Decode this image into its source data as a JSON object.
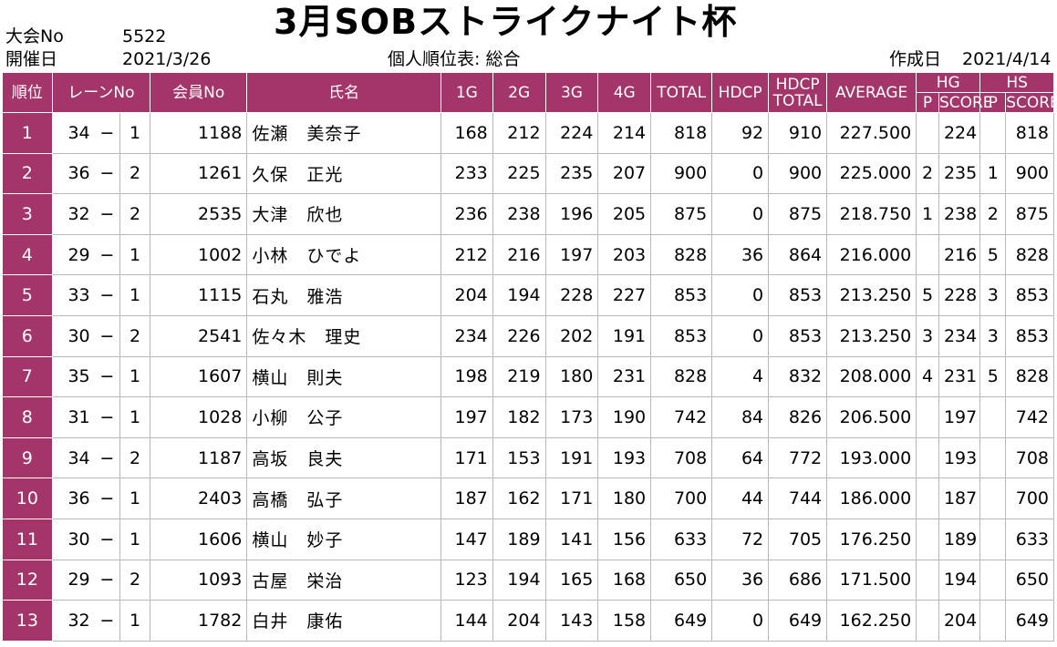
{
  "header": {
    "tournament_no_label": "大会No",
    "tournament_no_value": "5522",
    "date_label": "開催日",
    "date_value": "2021/3/26",
    "title": "3月SOBストライクナイト杯",
    "report_type": "個人順位表: 総合",
    "created_label": "作成日",
    "created_value": "2021/4/14"
  },
  "columns": {
    "rank": "順位",
    "lane": "レーンNo",
    "member": "会員No",
    "name": "氏名",
    "g1": "1G",
    "g2": "2G",
    "g3": "3G",
    "g4": "4G",
    "total": "TOTAL",
    "hdcp": "HDCP",
    "hdcp_total_1": "HDCP",
    "hdcp_total_2": "TOTAL",
    "average": "AVERAGE",
    "hg": "HG",
    "hs": "HS",
    "p": "P",
    "score": "SCORE"
  },
  "rows": [
    {
      "rank": "1",
      "lane": "34",
      "dash": "−",
      "pos": "1",
      "member": "1188",
      "name": "佐瀬　美奈子",
      "g1": "168",
      "g2": "212",
      "g3": "224",
      "g4": "214",
      "total": "818",
      "hdcp": "92",
      "hdcp_total": "910",
      "average": "227.500",
      "hg_p": "",
      "hg_score": "224",
      "hs_p": "",
      "hs_score": "818"
    },
    {
      "rank": "2",
      "lane": "36",
      "dash": "−",
      "pos": "2",
      "member": "1261",
      "name": "久保　正光",
      "g1": "233",
      "g2": "225",
      "g3": "235",
      "g4": "207",
      "total": "900",
      "hdcp": "0",
      "hdcp_total": "900",
      "average": "225.000",
      "hg_p": "2",
      "hg_score": "235",
      "hs_p": "1",
      "hs_score": "900"
    },
    {
      "rank": "3",
      "lane": "32",
      "dash": "−",
      "pos": "2",
      "member": "2535",
      "name": "大津　欣也",
      "g1": "236",
      "g2": "238",
      "g3": "196",
      "g4": "205",
      "total": "875",
      "hdcp": "0",
      "hdcp_total": "875",
      "average": "218.750",
      "hg_p": "1",
      "hg_score": "238",
      "hs_p": "2",
      "hs_score": "875"
    },
    {
      "rank": "4",
      "lane": "29",
      "dash": "−",
      "pos": "1",
      "member": "1002",
      "name": "小林　ひでよ",
      "g1": "212",
      "g2": "216",
      "g3": "197",
      "g4": "203",
      "total": "828",
      "hdcp": "36",
      "hdcp_total": "864",
      "average": "216.000",
      "hg_p": "",
      "hg_score": "216",
      "hs_p": "5",
      "hs_score": "828"
    },
    {
      "rank": "5",
      "lane": "33",
      "dash": "−",
      "pos": "1",
      "member": "1115",
      "name": "石丸　雅浩",
      "g1": "204",
      "g2": "194",
      "g3": "228",
      "g4": "227",
      "total": "853",
      "hdcp": "0",
      "hdcp_total": "853",
      "average": "213.250",
      "hg_p": "5",
      "hg_score": "228",
      "hs_p": "3",
      "hs_score": "853"
    },
    {
      "rank": "6",
      "lane": "30",
      "dash": "−",
      "pos": "2",
      "member": "2541",
      "name": "佐々木　理史",
      "g1": "234",
      "g2": "226",
      "g3": "202",
      "g4": "191",
      "total": "853",
      "hdcp": "0",
      "hdcp_total": "853",
      "average": "213.250",
      "hg_p": "3",
      "hg_score": "234",
      "hs_p": "3",
      "hs_score": "853"
    },
    {
      "rank": "7",
      "lane": "35",
      "dash": "−",
      "pos": "1",
      "member": "1607",
      "name": "横山　則夫",
      "g1": "198",
      "g2": "219",
      "g3": "180",
      "g4": "231",
      "total": "828",
      "hdcp": "4",
      "hdcp_total": "832",
      "average": "208.000",
      "hg_p": "4",
      "hg_score": "231",
      "hs_p": "5",
      "hs_score": "828"
    },
    {
      "rank": "8",
      "lane": "31",
      "dash": "−",
      "pos": "1",
      "member": "1028",
      "name": "小柳　公子",
      "g1": "197",
      "g2": "182",
      "g3": "173",
      "g4": "190",
      "total": "742",
      "hdcp": "84",
      "hdcp_total": "826",
      "average": "206.500",
      "hg_p": "",
      "hg_score": "197",
      "hs_p": "",
      "hs_score": "742"
    },
    {
      "rank": "9",
      "lane": "34",
      "dash": "−",
      "pos": "2",
      "member": "1187",
      "name": "高坂　良夫",
      "g1": "171",
      "g2": "153",
      "g3": "191",
      "g4": "193",
      "total": "708",
      "hdcp": "64",
      "hdcp_total": "772",
      "average": "193.000",
      "hg_p": "",
      "hg_score": "193",
      "hs_p": "",
      "hs_score": "708"
    },
    {
      "rank": "10",
      "lane": "36",
      "dash": "−",
      "pos": "1",
      "member": "2403",
      "name": "高橋　弘子",
      "g1": "187",
      "g2": "162",
      "g3": "171",
      "g4": "180",
      "total": "700",
      "hdcp": "44",
      "hdcp_total": "744",
      "average": "186.000",
      "hg_p": "",
      "hg_score": "187",
      "hs_p": "",
      "hs_score": "700"
    },
    {
      "rank": "11",
      "lane": "30",
      "dash": "−",
      "pos": "1",
      "member": "1606",
      "name": "横山　妙子",
      "g1": "147",
      "g2": "189",
      "g3": "141",
      "g4": "156",
      "total": "633",
      "hdcp": "72",
      "hdcp_total": "705",
      "average": "176.250",
      "hg_p": "",
      "hg_score": "189",
      "hs_p": "",
      "hs_score": "633"
    },
    {
      "rank": "12",
      "lane": "29",
      "dash": "−",
      "pos": "2",
      "member": "1093",
      "name": "古屋　栄治",
      "g1": "123",
      "g2": "194",
      "g3": "165",
      "g4": "168",
      "total": "650",
      "hdcp": "36",
      "hdcp_total": "686",
      "average": "171.500",
      "hg_p": "",
      "hg_score": "194",
      "hs_p": "",
      "hs_score": "650"
    },
    {
      "rank": "13",
      "lane": "32",
      "dash": "−",
      "pos": "1",
      "member": "1782",
      "name": "白井　康佑",
      "g1": "144",
      "g2": "204",
      "g3": "143",
      "g4": "158",
      "total": "649",
      "hdcp": "0",
      "hdcp_total": "649",
      "average": "162.250",
      "hg_p": "",
      "hg_score": "204",
      "hs_p": "",
      "hs_score": "649"
    }
  ],
  "theme": {
    "header_bg": "#a3356a",
    "header_text": "#ffffff",
    "grid_line": "#b9b9b9"
  }
}
